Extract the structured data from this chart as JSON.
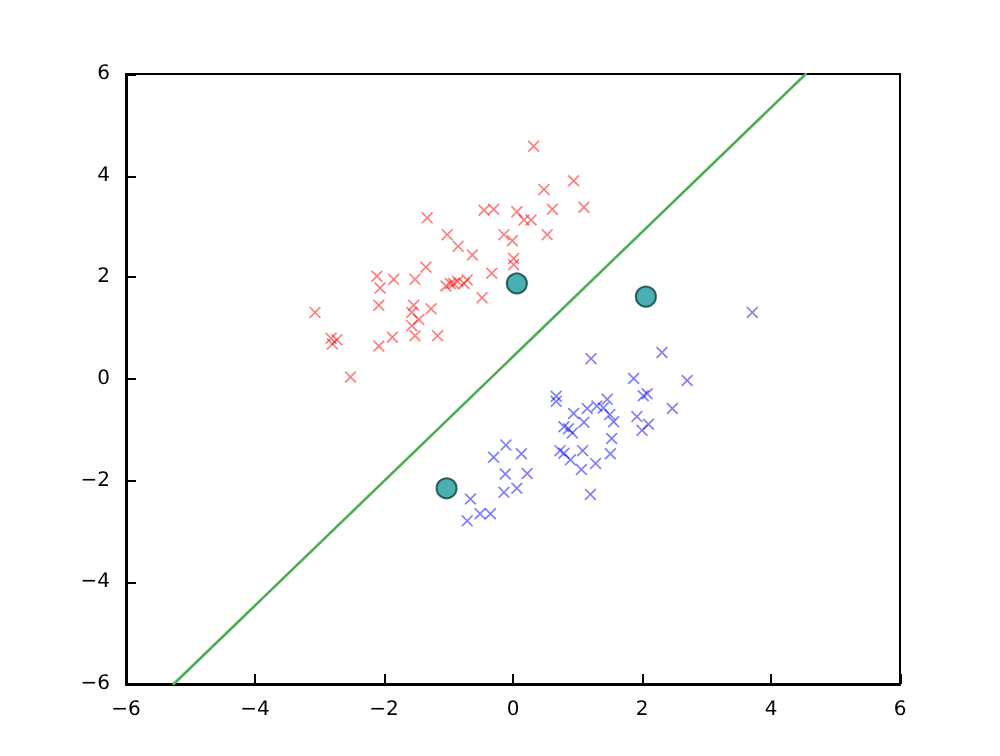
{
  "chart_data": {
    "type": "scatter",
    "xlim": [
      -6,
      6
    ],
    "ylim": [
      -6,
      6
    ],
    "xticks": [
      -6,
      -4,
      -2,
      0,
      2,
      4,
      6
    ],
    "yticks": [
      -6,
      -4,
      -2,
      0,
      2,
      4,
      6
    ],
    "grid": false,
    "series": [
      {
        "marker": "cross",
        "color": "#ff0000",
        "x": [
          0.32,
          0.48,
          0.94,
          1.1,
          0.61,
          -1.33,
          -0.45,
          -0.3,
          0.06,
          0.17,
          0.28,
          0.53,
          -1.02,
          -0.14,
          -0.01,
          -0.85,
          -0.63,
          0.01,
          0.01,
          -0.33,
          -1.35,
          -2.11,
          -1.85,
          -1.52,
          -2.06,
          -0.97,
          -0.92,
          -0.86,
          -0.76,
          -1.04,
          -0.48,
          -0.71,
          -3.07,
          -2.08,
          -1.54,
          -1.57,
          -1.27,
          -1.46,
          -1.57,
          -1.52,
          -1.17,
          -1.87,
          -2.08,
          -2.82,
          -2.73,
          -2.8,
          -2.52
        ],
        "values": [
          4.58,
          3.73,
          3.9,
          3.38,
          3.34,
          3.17,
          3.32,
          3.34,
          3.29,
          3.13,
          3.13,
          2.84,
          2.84,
          2.84,
          2.72,
          2.61,
          2.44,
          2.37,
          2.25,
          2.08,
          2.2,
          2.02,
          1.96,
          1.96,
          1.79,
          1.88,
          1.88,
          1.92,
          1.88,
          1.83,
          1.6,
          1.95,
          1.31,
          1.45,
          1.45,
          1.31,
          1.38,
          1.17,
          1.05,
          0.85,
          0.85,
          0.82,
          0.65,
          0.8,
          0.77,
          0.69,
          0.04
        ]
      },
      {
        "marker": "cross",
        "color": "#0000ff",
        "x": [
          3.71,
          2.31,
          1.21,
          1.87,
          2.7,
          0.67,
          0.67,
          2.08,
          2.02,
          2.47,
          0.94,
          1.15,
          1.46,
          1.4,
          1.5,
          1.3,
          1.56,
          1.92,
          2.1,
          2.0,
          0.79,
          0.86,
          0.92,
          1.1,
          1.53,
          0.73,
          0.79,
          1.08,
          1.51,
          0.89,
          1.28,
          1.06,
          1.2,
          -0.11,
          -0.3,
          0.13,
          -0.12,
          0.22,
          0.06,
          -0.14,
          -0.66,
          -0.51,
          -0.35,
          -0.71
        ],
        "values": [
          1.31,
          0.52,
          0.4,
          0.01,
          -0.03,
          -0.34,
          -0.44,
          -0.29,
          -0.33,
          -0.58,
          -0.68,
          -0.58,
          -0.4,
          -0.57,
          -0.7,
          -0.53,
          -0.84,
          -0.74,
          -0.89,
          -1.01,
          -0.94,
          -0.98,
          -1.06,
          -0.85,
          -1.17,
          -1.41,
          -1.46,
          -1.41,
          -1.47,
          -1.59,
          -1.66,
          -1.78,
          -2.27,
          -1.3,
          -1.54,
          -1.47,
          -1.87,
          -1.86,
          -2.15,
          -2.23,
          -2.36,
          -2.65,
          -2.65,
          -2.79
        ]
      },
      {
        "marker": "circle",
        "color": "#1a9ba0",
        "x": [
          0.06,
          2.06,
          -1.03
        ],
        "values": [
          1.88,
          1.62,
          -2.15
        ]
      },
      {
        "type": "line",
        "marker": "none",
        "line_style": "solid",
        "color": "#4caf50",
        "x": [
          -5.26,
          4.54
        ],
        "values": [
          -6,
          6
        ]
      }
    ]
  }
}
